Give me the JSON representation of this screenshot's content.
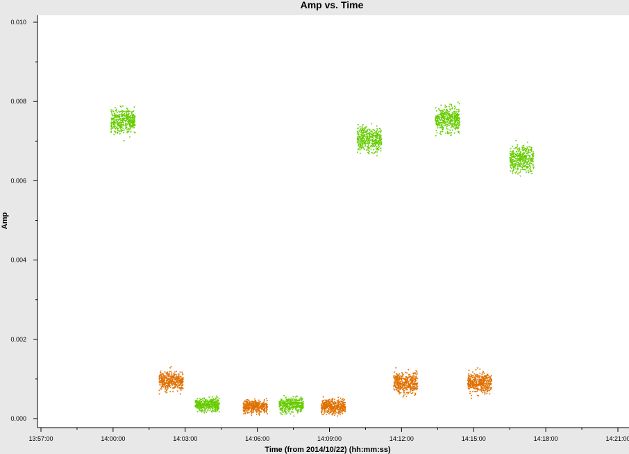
{
  "chart_data": {
    "type": "scatter",
    "title": "Amp vs. Time",
    "xlabel": "Time (from 2014/10/22) (hh:mm:ss)",
    "ylabel": "Amp",
    "x_tick_labels": [
      "13:57:00",
      "14:00:00",
      "14:03:00",
      "14:06:00",
      "14:09:00",
      "14:12:00",
      "14:15:00",
      "14:18:00",
      "14:21:00"
    ],
    "y_tick_labels": [
      "0.000",
      "0.002",
      "0.004",
      "0.006",
      "0.008",
      "0.010"
    ],
    "xlim": [
      "13:57:00",
      "14:21:00"
    ],
    "ylim": [
      0,
      0.01
    ],
    "grid": false,
    "marker": "small downward triangles",
    "series": [
      {
        "color": "#66cc00",
        "scans": [
          {
            "start": "13:59:55",
            "end": "14:00:55",
            "mean": 0.0075,
            "spread": 0.0005
          },
          {
            "start": "14:03:25",
            "end": "14:04:25",
            "mean": 0.00035,
            "spread": 0.00025
          },
          {
            "start": "14:06:55",
            "end": "14:07:55",
            "mean": 0.00035,
            "spread": 0.00028
          },
          {
            "start": "14:10:10",
            "end": "14:11:10",
            "mean": 0.00705,
            "spread": 0.0005
          },
          {
            "start": "14:13:25",
            "end": "14:14:25",
            "mean": 0.00755,
            "spread": 0.0005
          },
          {
            "start": "14:16:30",
            "end": "14:17:30",
            "mean": 0.00655,
            "spread": 0.0005
          }
        ]
      },
      {
        "color": "#e07000",
        "scans": [
          {
            "start": "14:01:55",
            "end": "14:02:55",
            "mean": 0.00095,
            "spread": 0.00035
          },
          {
            "start": "14:05:25",
            "end": "14:06:25",
            "mean": 0.0003,
            "spread": 0.00025
          },
          {
            "start": "14:08:40",
            "end": "14:09:40",
            "mean": 0.0003,
            "spread": 0.00028
          },
          {
            "start": "14:11:40",
            "end": "14:12:40",
            "mean": 0.0009,
            "spread": 0.0004
          },
          {
            "start": "14:14:45",
            "end": "14:15:45",
            "mean": 0.0009,
            "spread": 0.00038
          }
        ]
      }
    ]
  }
}
